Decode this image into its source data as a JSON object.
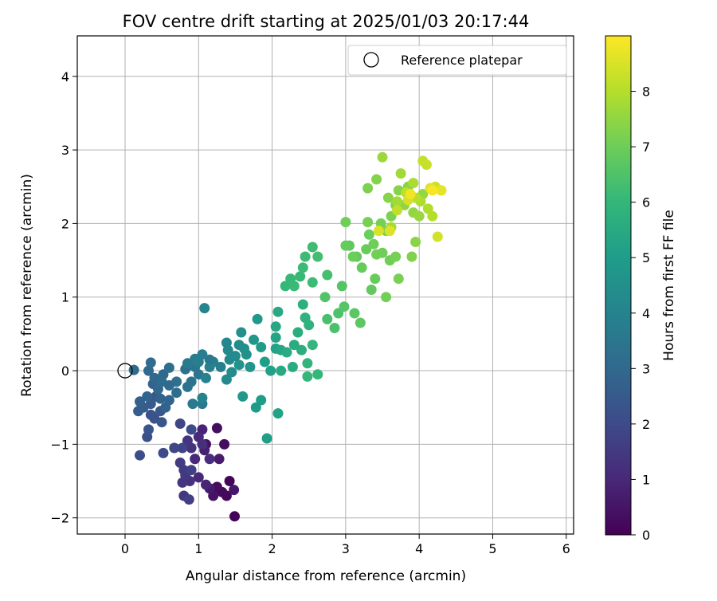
{
  "chart_data": {
    "type": "scatter",
    "title": "FOV centre drift starting at 2025/01/03 20:17:44",
    "xlabel": "Angular distance from reference (arcmin)",
    "ylabel": "Rotation from reference (arcmin)",
    "xlim": [
      -0.65,
      6.1
    ],
    "ylim": [
      -2.22,
      4.55
    ],
    "xticks": [
      0,
      1,
      2,
      3,
      4,
      5,
      6
    ],
    "yticks": [
      -2,
      -1,
      0,
      1,
      2,
      3,
      4
    ],
    "grid": true,
    "legend": {
      "placement": "top-right",
      "entries": [
        {
          "label": "Reference platepar",
          "marker": "open-circle",
          "color": "#000000"
        }
      ]
    },
    "reference_point": {
      "x": 0,
      "y": 0
    },
    "colorbar": {
      "label": "Hours from first FF file",
      "colormap": "viridis",
      "range": [
        0,
        9.0
      ],
      "ticks": [
        0,
        1,
        2,
        3,
        4,
        5,
        6,
        7,
        8
      ]
    },
    "points": [
      {
        "x": 1.49,
        "y": -1.98,
        "c": 0.05
      },
      {
        "x": 1.42,
        "y": -1.5,
        "c": 0.1
      },
      {
        "x": 1.38,
        "y": -1.7,
        "c": 0.15
      },
      {
        "x": 1.32,
        "y": -1.65,
        "c": 0.2
      },
      {
        "x": 1.25,
        "y": -1.58,
        "c": 0.25
      },
      {
        "x": 1.35,
        "y": -1.0,
        "c": 0.3
      },
      {
        "x": 1.25,
        "y": -0.78,
        "c": 0.35
      },
      {
        "x": 1.1,
        "y": -1.0,
        "c": 0.4
      },
      {
        "x": 1.2,
        "y": -1.7,
        "c": 0.45
      },
      {
        "x": 1.48,
        "y": -1.62,
        "c": 0.55
      },
      {
        "x": 1.15,
        "y": -1.6,
        "c": 0.6
      },
      {
        "x": 1.28,
        "y": -1.2,
        "c": 0.7
      },
      {
        "x": 1.08,
        "y": -1.08,
        "c": 0.8
      },
      {
        "x": 1.05,
        "y": -0.8,
        "c": 0.9
      },
      {
        "x": 1.1,
        "y": -1.55,
        "c": 0.95
      },
      {
        "x": 1.0,
        "y": -1.45,
        "c": 1.0
      },
      {
        "x": 0.95,
        "y": -1.2,
        "c": 1.05
      },
      {
        "x": 1.0,
        "y": -0.9,
        "c": 1.1
      },
      {
        "x": 1.15,
        "y": -1.2,
        "c": 1.15
      },
      {
        "x": 1.05,
        "y": -1.0,
        "c": 1.2
      },
      {
        "x": 0.88,
        "y": -1.5,
        "c": 1.25
      },
      {
        "x": 0.9,
        "y": -1.05,
        "c": 1.3
      },
      {
        "x": 0.85,
        "y": -0.95,
        "c": 1.35
      },
      {
        "x": 0.8,
        "y": -1.7,
        "c": 1.4
      },
      {
        "x": 0.78,
        "y": -1.52,
        "c": 1.45
      },
      {
        "x": 0.82,
        "y": -1.42,
        "c": 1.5
      },
      {
        "x": 0.8,
        "y": -1.35,
        "c": 1.55
      },
      {
        "x": 0.75,
        "y": -1.25,
        "c": 1.6
      },
      {
        "x": 0.87,
        "y": -1.75,
        "c": 1.65
      },
      {
        "x": 0.9,
        "y": -1.35,
        "c": 1.7
      },
      {
        "x": 0.78,
        "y": -1.05,
        "c": 1.8
      },
      {
        "x": 0.75,
        "y": -0.72,
        "c": 1.85
      },
      {
        "x": 0.67,
        "y": -1.05,
        "c": 1.9
      },
      {
        "x": 0.52,
        "y": -1.12,
        "c": 2.0
      },
      {
        "x": 0.9,
        "y": -0.8,
        "c": 2.05
      },
      {
        "x": 0.2,
        "y": -1.15,
        "c": 2.1
      },
      {
        "x": 0.3,
        "y": -0.9,
        "c": 2.2
      },
      {
        "x": 0.35,
        "y": -0.6,
        "c": 2.25
      },
      {
        "x": 0.4,
        "y": -0.65,
        "c": 2.3
      },
      {
        "x": 0.32,
        "y": -0.8,
        "c": 2.35
      },
      {
        "x": 0.5,
        "y": -0.7,
        "c": 2.4
      },
      {
        "x": 0.48,
        "y": -0.55,
        "c": 2.45
      },
      {
        "x": 0.42,
        "y": -0.35,
        "c": 2.5
      },
      {
        "x": 0.35,
        "y": -0.45,
        "c": 2.55
      },
      {
        "x": 0.25,
        "y": -0.5,
        "c": 2.6
      },
      {
        "x": 0.18,
        "y": -0.55,
        "c": 2.65
      },
      {
        "x": 0.2,
        "y": -0.42,
        "c": 2.7
      },
      {
        "x": 0.38,
        "y": -0.18,
        "c": 2.75
      },
      {
        "x": 0.48,
        "y": -0.38,
        "c": 2.8
      },
      {
        "x": 0.55,
        "y": -0.5,
        "c": 2.85
      },
      {
        "x": 0.6,
        "y": -0.4,
        "c": 2.9
      },
      {
        "x": 0.45,
        "y": -0.25,
        "c": 2.95
      },
      {
        "x": 0.52,
        "y": -0.05,
        "c": 3.0
      },
      {
        "x": 0.32,
        "y": 0.0,
        "c": 3.05
      },
      {
        "x": 0.12,
        "y": 0.01,
        "c": 3.1
      },
      {
        "x": 0.35,
        "y": 0.11,
        "c": 3.15
      },
      {
        "x": 0.5,
        "y": -0.15,
        "c": 3.2
      },
      {
        "x": 0.6,
        "y": 0.04,
        "c": 3.25
      },
      {
        "x": 0.7,
        "y": -0.15,
        "c": 3.3
      },
      {
        "x": 0.82,
        "y": 0.02,
        "c": 3.35
      },
      {
        "x": 0.85,
        "y": -0.22,
        "c": 3.4
      },
      {
        "x": 0.9,
        "y": -0.15,
        "c": 3.45
      },
      {
        "x": 0.95,
        "y": 0.05,
        "c": 3.5
      },
      {
        "x": 1.0,
        "y": -0.05,
        "c": 3.55
      },
      {
        "x": 1.05,
        "y": -0.45,
        "c": 3.6
      },
      {
        "x": 0.92,
        "y": -0.45,
        "c": 3.65
      },
      {
        "x": 0.85,
        "y": 0.1,
        "c": 3.7
      },
      {
        "x": 0.95,
        "y": 0.16,
        "c": 3.75
      },
      {
        "x": 1.05,
        "y": 0.22,
        "c": 3.8
      },
      {
        "x": 1.0,
        "y": 0.12,
        "c": 3.85
      },
      {
        "x": 1.2,
        "y": 0.12,
        "c": 3.9
      },
      {
        "x": 1.15,
        "y": 0.05,
        "c": 3.95
      },
      {
        "x": 1.1,
        "y": -0.1,
        "c": 4.0
      },
      {
        "x": 1.05,
        "y": -0.37,
        "c": 4.05
      },
      {
        "x": 1.08,
        "y": 0.85,
        "c": 4.1
      },
      {
        "x": 1.38,
        "y": 0.38,
        "c": 4.15
      },
      {
        "x": 1.4,
        "y": 0.28,
        "c": 4.2
      },
      {
        "x": 1.42,
        "y": 0.15,
        "c": 4.25
      },
      {
        "x": 1.38,
        "y": -0.12,
        "c": 4.3
      },
      {
        "x": 1.45,
        "y": -0.02,
        "c": 4.35
      },
      {
        "x": 1.55,
        "y": 0.35,
        "c": 4.4
      },
      {
        "x": 1.62,
        "y": 0.3,
        "c": 4.45
      },
      {
        "x": 1.58,
        "y": 0.52,
        "c": 4.5
      },
      {
        "x": 1.65,
        "y": 0.22,
        "c": 4.55
      },
      {
        "x": 1.55,
        "y": 0.08,
        "c": 4.6
      },
      {
        "x": 1.7,
        "y": 0.05,
        "c": 4.65
      },
      {
        "x": 1.6,
        "y": -0.35,
        "c": 4.7
      },
      {
        "x": 1.75,
        "y": 0.42,
        "c": 4.75
      },
      {
        "x": 1.8,
        "y": 0.7,
        "c": 4.8
      },
      {
        "x": 1.85,
        "y": 0.32,
        "c": 4.85
      },
      {
        "x": 1.78,
        "y": -0.5,
        "c": 4.9
      },
      {
        "x": 1.85,
        "y": -0.4,
        "c": 4.95
      },
      {
        "x": 1.9,
        "y": 0.12,
        "c": 5.0
      },
      {
        "x": 1.93,
        "y": -0.92,
        "c": 5.05
      },
      {
        "x": 1.98,
        "y": 0.0,
        "c": 5.1
      },
      {
        "x": 2.05,
        "y": 0.3,
        "c": 5.15
      },
      {
        "x": 2.08,
        "y": -0.58,
        "c": 5.2
      },
      {
        "x": 2.05,
        "y": 0.45,
        "c": 5.25
      },
      {
        "x": 2.12,
        "y": 0.28,
        "c": 5.3
      },
      {
        "x": 2.05,
        "y": 0.6,
        "c": 5.35
      },
      {
        "x": 2.08,
        "y": 0.8,
        "c": 5.4
      },
      {
        "x": 2.12,
        "y": 0.0,
        "c": 5.45
      },
      {
        "x": 2.2,
        "y": 0.25,
        "c": 5.5
      },
      {
        "x": 2.28,
        "y": 0.05,
        "c": 5.55
      },
      {
        "x": 2.35,
        "y": 0.52,
        "c": 5.6
      },
      {
        "x": 2.4,
        "y": 0.28,
        "c": 5.65
      },
      {
        "x": 2.42,
        "y": 0.9,
        "c": 5.7
      },
      {
        "x": 2.45,
        "y": 0.72,
        "c": 5.75
      },
      {
        "x": 2.5,
        "y": 0.62,
        "c": 5.8
      },
      {
        "x": 2.48,
        "y": 0.1,
        "c": 5.85
      },
      {
        "x": 2.55,
        "y": 0.35,
        "c": 5.9
      },
      {
        "x": 2.62,
        "y": -0.05,
        "c": 5.95
      },
      {
        "x": 2.48,
        "y": -0.08,
        "c": 6.0
      },
      {
        "x": 2.38,
        "y": 1.28,
        "c": 6.05
      },
      {
        "x": 2.42,
        "y": 1.4,
        "c": 6.1
      },
      {
        "x": 2.45,
        "y": 1.55,
        "c": 6.15
      },
      {
        "x": 2.55,
        "y": 1.68,
        "c": 6.2
      },
      {
        "x": 2.62,
        "y": 1.55,
        "c": 6.25
      },
      {
        "x": 2.75,
        "y": 1.3,
        "c": 6.3
      },
      {
        "x": 2.75,
        "y": 0.7,
        "c": 6.35
      },
      {
        "x": 2.85,
        "y": 0.58,
        "c": 6.4
      },
      {
        "x": 2.9,
        "y": 0.78,
        "c": 6.45
      },
      {
        "x": 2.72,
        "y": 1.0,
        "c": 6.5
      },
      {
        "x": 2.95,
        "y": 1.15,
        "c": 6.55
      },
      {
        "x": 2.98,
        "y": 0.87,
        "c": 6.6
      },
      {
        "x": 3.12,
        "y": 0.78,
        "c": 6.65
      },
      {
        "x": 3.2,
        "y": 0.65,
        "c": 6.7
      },
      {
        "x": 3.05,
        "y": 1.7,
        "c": 6.75
      },
      {
        "x": 3.15,
        "y": 1.55,
        "c": 6.8
      },
      {
        "x": 3.22,
        "y": 1.4,
        "c": 6.85
      },
      {
        "x": 3.28,
        "y": 1.65,
        "c": 6.9
      },
      {
        "x": 3.32,
        "y": 1.85,
        "c": 6.95
      },
      {
        "x": 3.38,
        "y": 1.72,
        "c": 7.0
      },
      {
        "x": 3.42,
        "y": 1.58,
        "c": 7.05
      },
      {
        "x": 3.48,
        "y": 2.0,
        "c": 7.1
      },
      {
        "x": 3.55,
        "y": 1.9,
        "c": 7.15
      },
      {
        "x": 3.62,
        "y": 2.1,
        "c": 7.2
      },
      {
        "x": 3.68,
        "y": 2.25,
        "c": 7.25
      },
      {
        "x": 3.72,
        "y": 2.45,
        "c": 7.3
      },
      {
        "x": 3.58,
        "y": 2.35,
        "c": 7.35
      },
      {
        "x": 3.85,
        "y": 2.5,
        "c": 7.4
      },
      {
        "x": 3.8,
        "y": 2.25,
        "c": 7.45
      },
      {
        "x": 3.92,
        "y": 2.15,
        "c": 7.5
      },
      {
        "x": 4.05,
        "y": 2.4,
        "c": 7.55
      },
      {
        "x": 4.0,
        "y": 2.1,
        "c": 7.6
      },
      {
        "x": 3.5,
        "y": 2.9,
        "c": 7.65
      },
      {
        "x": 3.75,
        "y": 2.68,
        "c": 7.7
      },
      {
        "x": 3.7,
        "y": 2.3,
        "c": 7.75
      },
      {
        "x": 3.62,
        "y": 1.95,
        "c": 7.8
      },
      {
        "x": 3.92,
        "y": 2.55,
        "c": 7.85
      },
      {
        "x": 4.02,
        "y": 2.3,
        "c": 7.9
      },
      {
        "x": 4.12,
        "y": 2.2,
        "c": 7.95
      },
      {
        "x": 4.18,
        "y": 2.1,
        "c": 8.0
      },
      {
        "x": 3.95,
        "y": 2.35,
        "c": 8.05
      },
      {
        "x": 3.82,
        "y": 2.42,
        "c": 8.1
      },
      {
        "x": 3.7,
        "y": 2.18,
        "c": 8.15
      },
      {
        "x": 4.05,
        "y": 2.85,
        "c": 8.2
      },
      {
        "x": 4.1,
        "y": 2.8,
        "c": 8.25
      },
      {
        "x": 4.22,
        "y": 2.5,
        "c": 8.3
      },
      {
        "x": 4.3,
        "y": 2.45,
        "c": 8.35
      },
      {
        "x": 4.25,
        "y": 1.82,
        "c": 8.4
      },
      {
        "x": 3.85,
        "y": 2.32,
        "c": 8.45
      },
      {
        "x": 3.45,
        "y": 1.9,
        "c": 8.5
      },
      {
        "x": 3.6,
        "y": 1.9,
        "c": 8.55
      },
      {
        "x": 4.15,
        "y": 2.48,
        "c": 8.6
      },
      {
        "x": 4.3,
        "y": 2.45,
        "c": 8.7
      },
      {
        "x": 3.88,
        "y": 2.4,
        "c": 8.8
      },
      {
        "x": 4.18,
        "y": 2.45,
        "c": 8.9
      },
      {
        "x": 0.7,
        "y": -0.3,
        "c": 3.2
      },
      {
        "x": 0.6,
        "y": -0.2,
        "c": 3.1
      },
      {
        "x": 0.4,
        "y": -0.1,
        "c": 3.0
      },
      {
        "x": 0.3,
        "y": -0.35,
        "c": 2.9
      },
      {
        "x": 1.15,
        "y": 0.15,
        "c": 3.7
      },
      {
        "x": 1.3,
        "y": 0.05,
        "c": 3.9
      },
      {
        "x": 1.5,
        "y": 0.2,
        "c": 4.3
      },
      {
        "x": 2.3,
        "y": 0.35,
        "c": 5.5
      },
      {
        "x": 2.18,
        "y": 1.15,
        "c": 6.0
      },
      {
        "x": 2.25,
        "y": 1.25,
        "c": 6.05
      },
      {
        "x": 2.3,
        "y": 1.15,
        "c": 6.1
      },
      {
        "x": 2.55,
        "y": 1.2,
        "c": 6.15
      },
      {
        "x": 3.4,
        "y": 1.25,
        "c": 6.9
      },
      {
        "x": 3.6,
        "y": 1.5,
        "c": 7.0
      },
      {
        "x": 3.3,
        "y": 2.02,
        "c": 7.1
      },
      {
        "x": 3.1,
        "y": 1.55,
        "c": 6.95
      },
      {
        "x": 3.0,
        "y": 1.7,
        "c": 6.85
      },
      {
        "x": 3.35,
        "y": 1.1,
        "c": 6.8
      },
      {
        "x": 3.5,
        "y": 1.6,
        "c": 7.0
      },
      {
        "x": 3.68,
        "y": 1.55,
        "c": 7.1
      },
      {
        "x": 3.55,
        "y": 1.0,
        "c": 7.05
      },
      {
        "x": 3.72,
        "y": 1.25,
        "c": 7.15
      },
      {
        "x": 3.9,
        "y": 1.55,
        "c": 7.25
      },
      {
        "x": 3.95,
        "y": 1.75,
        "c": 7.4
      },
      {
        "x": 3.0,
        "y": 2.02,
        "c": 7.0
      },
      {
        "x": 3.42,
        "y": 2.6,
        "c": 7.3
      },
      {
        "x": 3.3,
        "y": 2.48,
        "c": 7.2
      }
    ]
  }
}
